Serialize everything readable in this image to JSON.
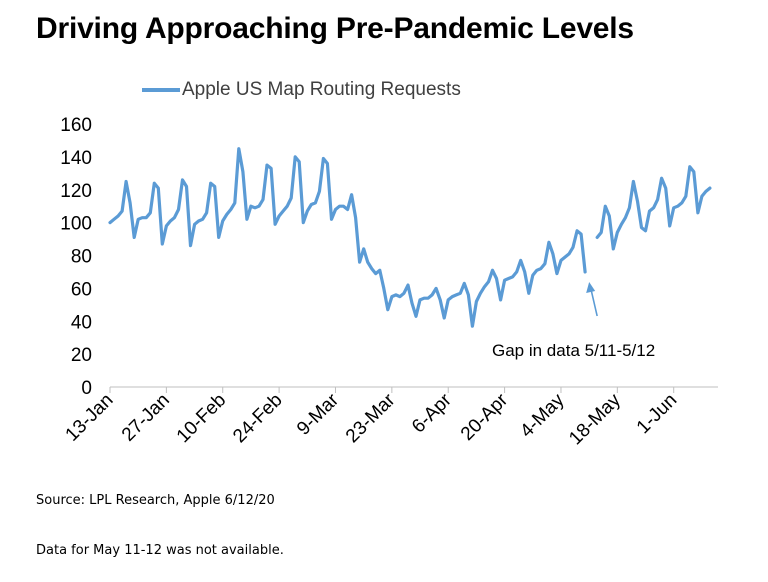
{
  "chart_data": {
    "type": "line",
    "title": "Driving Approaching Pre-Pandemic Levels",
    "legend": {
      "entries": [
        "Apple US Map Routing Requests"
      ],
      "position": "top"
    },
    "series": [
      {
        "name": "Apple US Map Routing Requests",
        "color": "#5B9BD5",
        "points": [
          [
            "2020-01-13",
            100
          ],
          [
            "2020-01-14",
            102
          ],
          [
            "2020-01-15",
            104
          ],
          [
            "2020-01-16",
            107
          ],
          [
            "2020-01-17",
            125
          ],
          [
            "2020-01-18",
            112
          ],
          [
            "2020-01-19",
            91
          ],
          [
            "2020-01-20",
            102
          ],
          [
            "2020-01-21",
            103
          ],
          [
            "2020-01-22",
            103
          ],
          [
            "2020-01-23",
            106
          ],
          [
            "2020-01-24",
            124
          ],
          [
            "2020-01-25",
            121
          ],
          [
            "2020-01-26",
            87
          ],
          [
            "2020-01-27",
            98
          ],
          [
            "2020-01-28",
            101
          ],
          [
            "2020-01-29",
            103
          ],
          [
            "2020-01-30",
            108
          ],
          [
            "2020-01-31",
            126
          ],
          [
            "2020-02-01",
            122
          ],
          [
            "2020-02-02",
            86
          ],
          [
            "2020-02-03",
            99
          ],
          [
            "2020-02-04",
            101
          ],
          [
            "2020-02-05",
            102
          ],
          [
            "2020-02-06",
            106
          ],
          [
            "2020-02-07",
            124
          ],
          [
            "2020-02-08",
            122
          ],
          [
            "2020-02-09",
            91
          ],
          [
            "2020-02-10",
            101
          ],
          [
            "2020-02-11",
            105
          ],
          [
            "2020-02-12",
            108
          ],
          [
            "2020-02-13",
            112
          ],
          [
            "2020-02-14",
            145
          ],
          [
            "2020-02-15",
            131
          ],
          [
            "2020-02-16",
            102
          ],
          [
            "2020-02-17",
            110
          ],
          [
            "2020-02-18",
            109
          ],
          [
            "2020-02-19",
            110
          ],
          [
            "2020-02-20",
            114
          ],
          [
            "2020-02-21",
            135
          ],
          [
            "2020-02-22",
            133
          ],
          [
            "2020-02-23",
            99
          ],
          [
            "2020-02-24",
            104
          ],
          [
            "2020-02-25",
            107
          ],
          [
            "2020-02-26",
            110
          ],
          [
            "2020-02-27",
            115
          ],
          [
            "2020-02-28",
            140
          ],
          [
            "2020-02-29",
            137
          ],
          [
            "2020-03-01",
            100
          ],
          [
            "2020-03-02",
            107
          ],
          [
            "2020-03-03",
            111
          ],
          [
            "2020-03-04",
            112
          ],
          [
            "2020-03-05",
            119
          ],
          [
            "2020-03-06",
            139
          ],
          [
            "2020-03-07",
            136
          ],
          [
            "2020-03-08",
            102
          ],
          [
            "2020-03-09",
            108
          ],
          [
            "2020-03-10",
            110
          ],
          [
            "2020-03-11",
            110
          ],
          [
            "2020-03-12",
            108
          ],
          [
            "2020-03-13",
            117
          ],
          [
            "2020-03-14",
            103
          ],
          [
            "2020-03-15",
            76
          ],
          [
            "2020-03-16",
            84
          ],
          [
            "2020-03-17",
            76
          ],
          [
            "2020-03-18",
            72
          ],
          [
            "2020-03-19",
            69
          ],
          [
            "2020-03-20",
            71
          ],
          [
            "2020-03-21",
            60
          ],
          [
            "2020-03-22",
            47
          ],
          [
            "2020-03-23",
            55
          ],
          [
            "2020-03-24",
            56
          ],
          [
            "2020-03-25",
            55
          ],
          [
            "2020-03-26",
            57
          ],
          [
            "2020-03-27",
            62
          ],
          [
            "2020-03-28",
            51
          ],
          [
            "2020-03-29",
            43
          ],
          [
            "2020-03-30",
            53
          ],
          [
            "2020-03-31",
            54
          ],
          [
            "2020-04-01",
            54
          ],
          [
            "2020-04-02",
            56
          ],
          [
            "2020-04-03",
            60
          ],
          [
            "2020-04-04",
            53
          ],
          [
            "2020-04-05",
            42
          ],
          [
            "2020-04-06",
            53
          ],
          [
            "2020-04-07",
            55
          ],
          [
            "2020-04-08",
            56
          ],
          [
            "2020-04-09",
            57
          ],
          [
            "2020-04-10",
            63
          ],
          [
            "2020-04-11",
            56
          ],
          [
            "2020-04-12",
            37
          ],
          [
            "2020-04-13",
            52
          ],
          [
            "2020-04-14",
            57
          ],
          [
            "2020-04-15",
            61
          ],
          [
            "2020-04-16",
            64
          ],
          [
            "2020-04-17",
            71
          ],
          [
            "2020-04-18",
            66
          ],
          [
            "2020-04-19",
            53
          ],
          [
            "2020-04-20",
            65
          ],
          [
            "2020-04-21",
            66
          ],
          [
            "2020-04-22",
            67
          ],
          [
            "2020-04-23",
            70
          ],
          [
            "2020-04-24",
            77
          ],
          [
            "2020-04-25",
            70
          ],
          [
            "2020-04-26",
            57
          ],
          [
            "2020-04-27",
            68
          ],
          [
            "2020-04-28",
            71
          ],
          [
            "2020-04-29",
            72
          ],
          [
            "2020-04-30",
            75
          ],
          [
            "2020-05-01",
            88
          ],
          [
            "2020-05-02",
            81
          ],
          [
            "2020-05-03",
            69
          ],
          [
            "2020-05-04",
            77
          ],
          [
            "2020-05-05",
            79
          ],
          [
            "2020-05-06",
            81
          ],
          [
            "2020-05-07",
            85
          ],
          [
            "2020-05-08",
            95
          ],
          [
            "2020-05-09",
            93
          ],
          [
            "2020-05-10",
            70
          ],
          [
            "2020-05-13",
            91
          ],
          [
            "2020-05-14",
            94
          ],
          [
            "2020-05-15",
            110
          ],
          [
            "2020-05-16",
            104
          ],
          [
            "2020-05-17",
            84
          ],
          [
            "2020-05-18",
            94
          ],
          [
            "2020-05-19",
            99
          ],
          [
            "2020-05-20",
            103
          ],
          [
            "2020-05-21",
            109
          ],
          [
            "2020-05-22",
            125
          ],
          [
            "2020-05-23",
            113
          ],
          [
            "2020-05-24",
            97
          ],
          [
            "2020-05-25",
            95
          ],
          [
            "2020-05-26",
            107
          ],
          [
            "2020-05-27",
            109
          ],
          [
            "2020-05-28",
            114
          ],
          [
            "2020-05-29",
            127
          ],
          [
            "2020-05-30",
            121
          ],
          [
            "2020-05-31",
            98
          ],
          [
            "2020-06-01",
            109
          ],
          [
            "2020-06-02",
            110
          ],
          [
            "2020-06-03",
            112
          ],
          [
            "2020-06-04",
            116
          ],
          [
            "2020-06-05",
            134
          ],
          [
            "2020-06-06",
            131
          ],
          [
            "2020-06-07",
            106
          ],
          [
            "2020-06-08",
            116
          ],
          [
            "2020-06-09",
            119
          ],
          [
            "2020-06-10",
            121
          ]
        ],
        "gap": [
          "2020-05-11",
          "2020-05-12"
        ]
      }
    ],
    "x_range": [
      "2020-01-13",
      "2020-06-12"
    ],
    "x_tick_dates": [
      "2020-01-13",
      "2020-01-27",
      "2020-02-10",
      "2020-02-24",
      "2020-03-09",
      "2020-03-23",
      "2020-04-06",
      "2020-04-20",
      "2020-05-04",
      "2020-05-18",
      "2020-06-01"
    ],
    "x_tick_labels": [
      "13-Jan",
      "27-Jan",
      "10-Feb",
      "24-Feb",
      "9-Mar",
      "23-Mar",
      "6-Apr",
      "20-Apr",
      "4-May",
      "18-May",
      "1-Jun"
    ],
    "ylim": [
      0,
      160
    ],
    "y_ticks": [
      0,
      20,
      40,
      60,
      80,
      100,
      120,
      140,
      160
    ],
    "grid": false,
    "annotation": {
      "text": "Gap in data 5/11-5/12",
      "arrow_points_to": "2020-05-11"
    }
  },
  "footer": {
    "source": "Source: LPL Research, Apple  6/12/20",
    "note": "Data for May 11-12 was not available."
  }
}
